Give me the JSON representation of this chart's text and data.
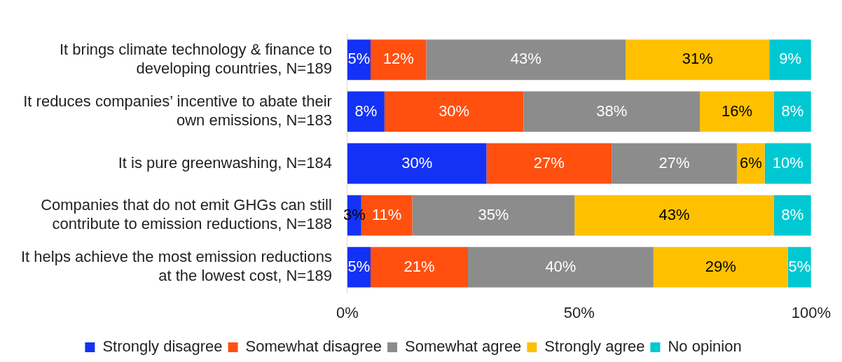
{
  "chart_data": {
    "type": "bar",
    "orientation": "horizontal",
    "stacked": true,
    "categories": [
      "It brings climate technology & finance to developing countries, N=189",
      "It reduces companies’ incentive to abate their own emissions, N=183",
      "It is pure greenwashing, N=184",
      "Companies that do not emit GHGs can still contribute to emission reductions, N=188",
      "It helps achieve the most emission reductions at the lowest cost, N=189"
    ],
    "series": [
      {
        "name": "Strongly disagree",
        "color": "#1432f5",
        "values": [
          5,
          8,
          30,
          3,
          5
        ],
        "value_labels": [
          "5%",
          "8%",
          "30%",
          "3%",
          "5%"
        ]
      },
      {
        "name": "Somewhat disagree",
        "color": "#ff5010",
        "values": [
          12,
          30,
          27,
          11,
          21
        ],
        "value_labels": [
          "12%",
          "30%",
          "27%",
          "11%",
          "21%"
        ]
      },
      {
        "name": "Somewhat agree",
        "color": "#8c8c8c",
        "values": [
          43,
          38,
          27,
          35,
          40
        ],
        "value_labels": [
          "43%",
          "38%",
          "27%",
          "35%",
          "40%"
        ]
      },
      {
        "name": "Strongly agree",
        "color": "#ffc000",
        "values": [
          31,
          16,
          6,
          43,
          29
        ],
        "value_labels": [
          "31%",
          "16%",
          "6%",
          "43%",
          "29%"
        ]
      },
      {
        "name": "No opinion",
        "color": "#00c8d2",
        "values": [
          9,
          8,
          10,
          8,
          5
        ],
        "value_labels": [
          "9%",
          "8%",
          "10%",
          "8%",
          "5%"
        ]
      }
    ],
    "xlim": [
      0,
      100
    ],
    "xticks": [
      {
        "value": 0,
        "label": "0%"
      },
      {
        "value": 50,
        "label": "50%"
      },
      {
        "value": 100,
        "label": "100%"
      }
    ],
    "grid": false,
    "legend": "bottom"
  }
}
